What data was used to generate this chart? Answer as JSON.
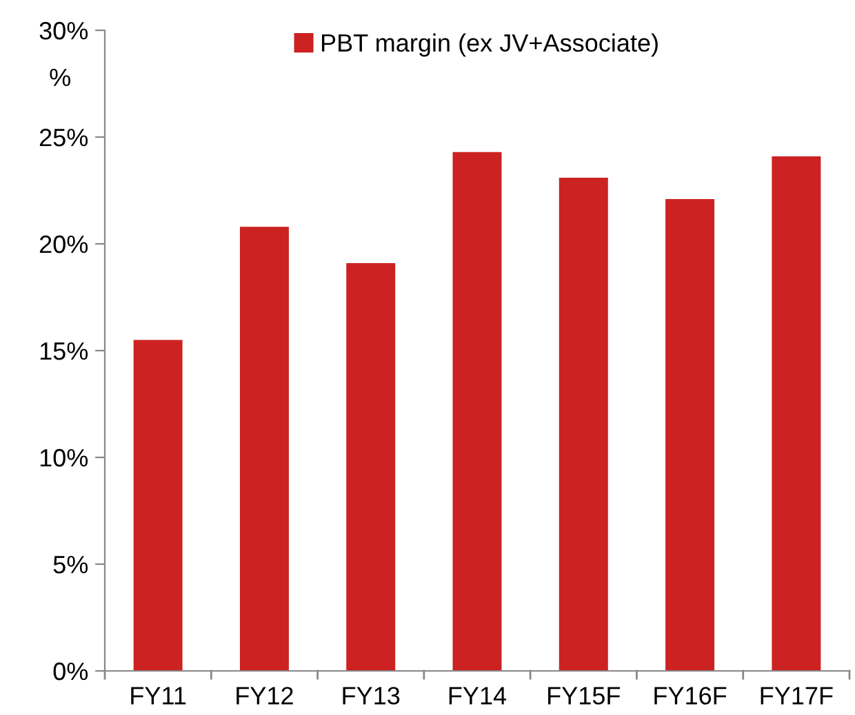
{
  "chart_data": {
    "type": "bar",
    "ylabel": "%",
    "categories": [
      "FY11",
      "FY12",
      "FY13",
      "FY14",
      "FY15F",
      "FY16F",
      "FY17F"
    ],
    "series": [
      {
        "name": "PBT margin (ex JV+Associate)",
        "color": "#cc2222",
        "values": [
          15.5,
          20.8,
          19.1,
          24.3,
          23.1,
          22.1,
          24.1
        ]
      }
    ],
    "ylim": [
      0,
      30
    ],
    "yticks": [
      {
        "value": 0,
        "label": "0%"
      },
      {
        "value": 5,
        "label": "5%"
      },
      {
        "value": 10,
        "label": "10%"
      },
      {
        "value": 15,
        "label": "15%"
      },
      {
        "value": 20,
        "label": "20%"
      },
      {
        "value": 25,
        "label": "25%"
      },
      {
        "value": 30,
        "label": "30%"
      }
    ],
    "grid": false,
    "legend": "top"
  }
}
